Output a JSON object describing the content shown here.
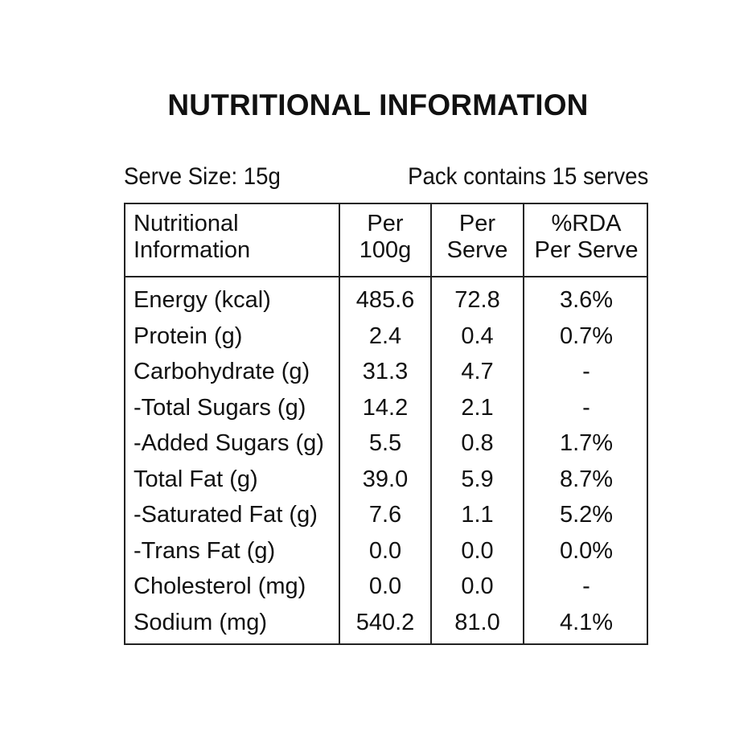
{
  "title": "NUTRITIONAL INFORMATION",
  "serve_size": "Serve Size:  15g",
  "pack_contains": "Pack contains 15 serves",
  "table": {
    "headers": [
      [
        "Nutritional",
        "Information"
      ],
      [
        "Per",
        "100g"
      ],
      [
        "Per",
        "Serve"
      ],
      [
        "%RDA",
        "Per Serve"
      ]
    ],
    "rows": [
      [
        "Energy (kcal)",
        "485.6",
        "72.8",
        "3.6%"
      ],
      [
        "Protein (g)",
        "2.4",
        "0.4",
        "0.7%"
      ],
      [
        "Carbohydrate (g)",
        "31.3",
        "4.7",
        "-"
      ],
      [
        "-Total Sugars (g)",
        "14.2",
        "2.1",
        "-"
      ],
      [
        "-Added Sugars (g)",
        "5.5",
        "0.8",
        "1.7%"
      ],
      [
        "Total Fat (g)",
        "39.0",
        "5.9",
        "8.7%"
      ],
      [
        "-Saturated Fat (g)",
        "7.6",
        "1.1",
        "5.2%"
      ],
      [
        "-Trans Fat (g)",
        "0.0",
        "0.0",
        "0.0%"
      ],
      [
        "Cholesterol (mg)",
        "0.0",
        "0.0",
        "-"
      ],
      [
        "Sodium (mg)",
        "540.2",
        "81.0",
        "4.1%"
      ]
    ]
  }
}
